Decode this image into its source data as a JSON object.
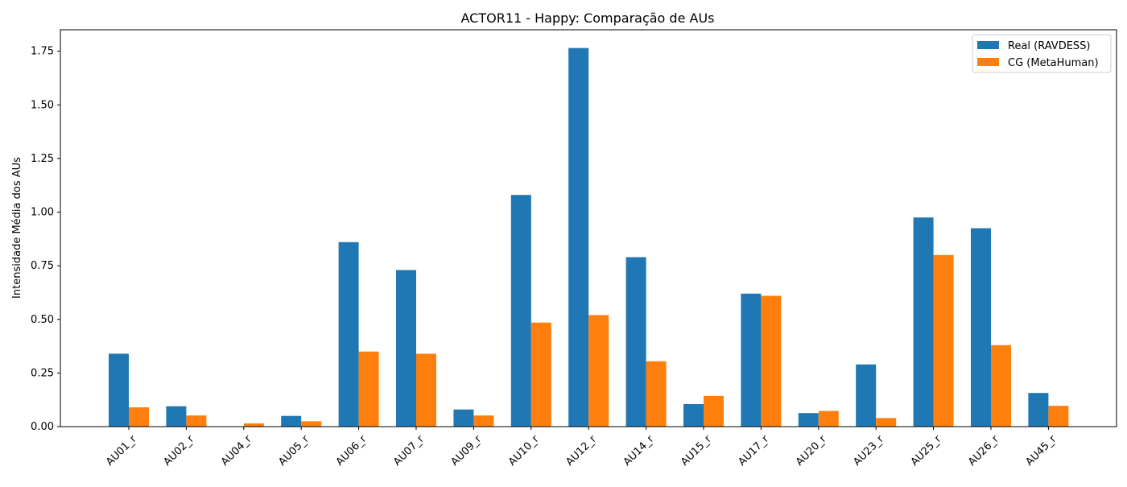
{
  "chart_data": {
    "type": "bar",
    "title": "ACTOR11 - Happy: Comparação de AUs",
    "xlabel": "",
    "ylabel": "Intensidade Média dos AUs",
    "ylim": [
      0,
      1.85
    ],
    "yticks": [
      "0.00",
      "0.25",
      "0.50",
      "0.75",
      "1.00",
      "1.25",
      "1.50",
      "1.75"
    ],
    "categories": [
      "AU01_r",
      "AU02_r",
      "AU04_r",
      "AU05_r",
      "AU06_r",
      "AU07_r",
      "AU09_r",
      "AU10_r",
      "AU12_r",
      "AU14_r",
      "AU15_r",
      "AU17_r",
      "AU20_r",
      "AU23_r",
      "AU25_r",
      "AU26_r",
      "AU45_r"
    ],
    "series": [
      {
        "name": "Real (RAVDESS)",
        "color": "#1f77b4",
        "values": [
          0.34,
          0.095,
          0.0,
          0.05,
          0.86,
          0.73,
          0.08,
          1.08,
          1.765,
          0.79,
          0.105,
          0.62,
          0.063,
          0.29,
          0.975,
          0.925,
          0.157
        ]
      },
      {
        "name": "CG (MetaHuman)",
        "color": "#ff7f0e",
        "values": [
          0.09,
          0.052,
          0.015,
          0.025,
          0.35,
          0.34,
          0.052,
          0.485,
          0.52,
          0.305,
          0.143,
          0.61,
          0.073,
          0.04,
          0.8,
          0.38,
          0.097
        ]
      }
    ],
    "grid": false,
    "legend_position": "top-right"
  }
}
